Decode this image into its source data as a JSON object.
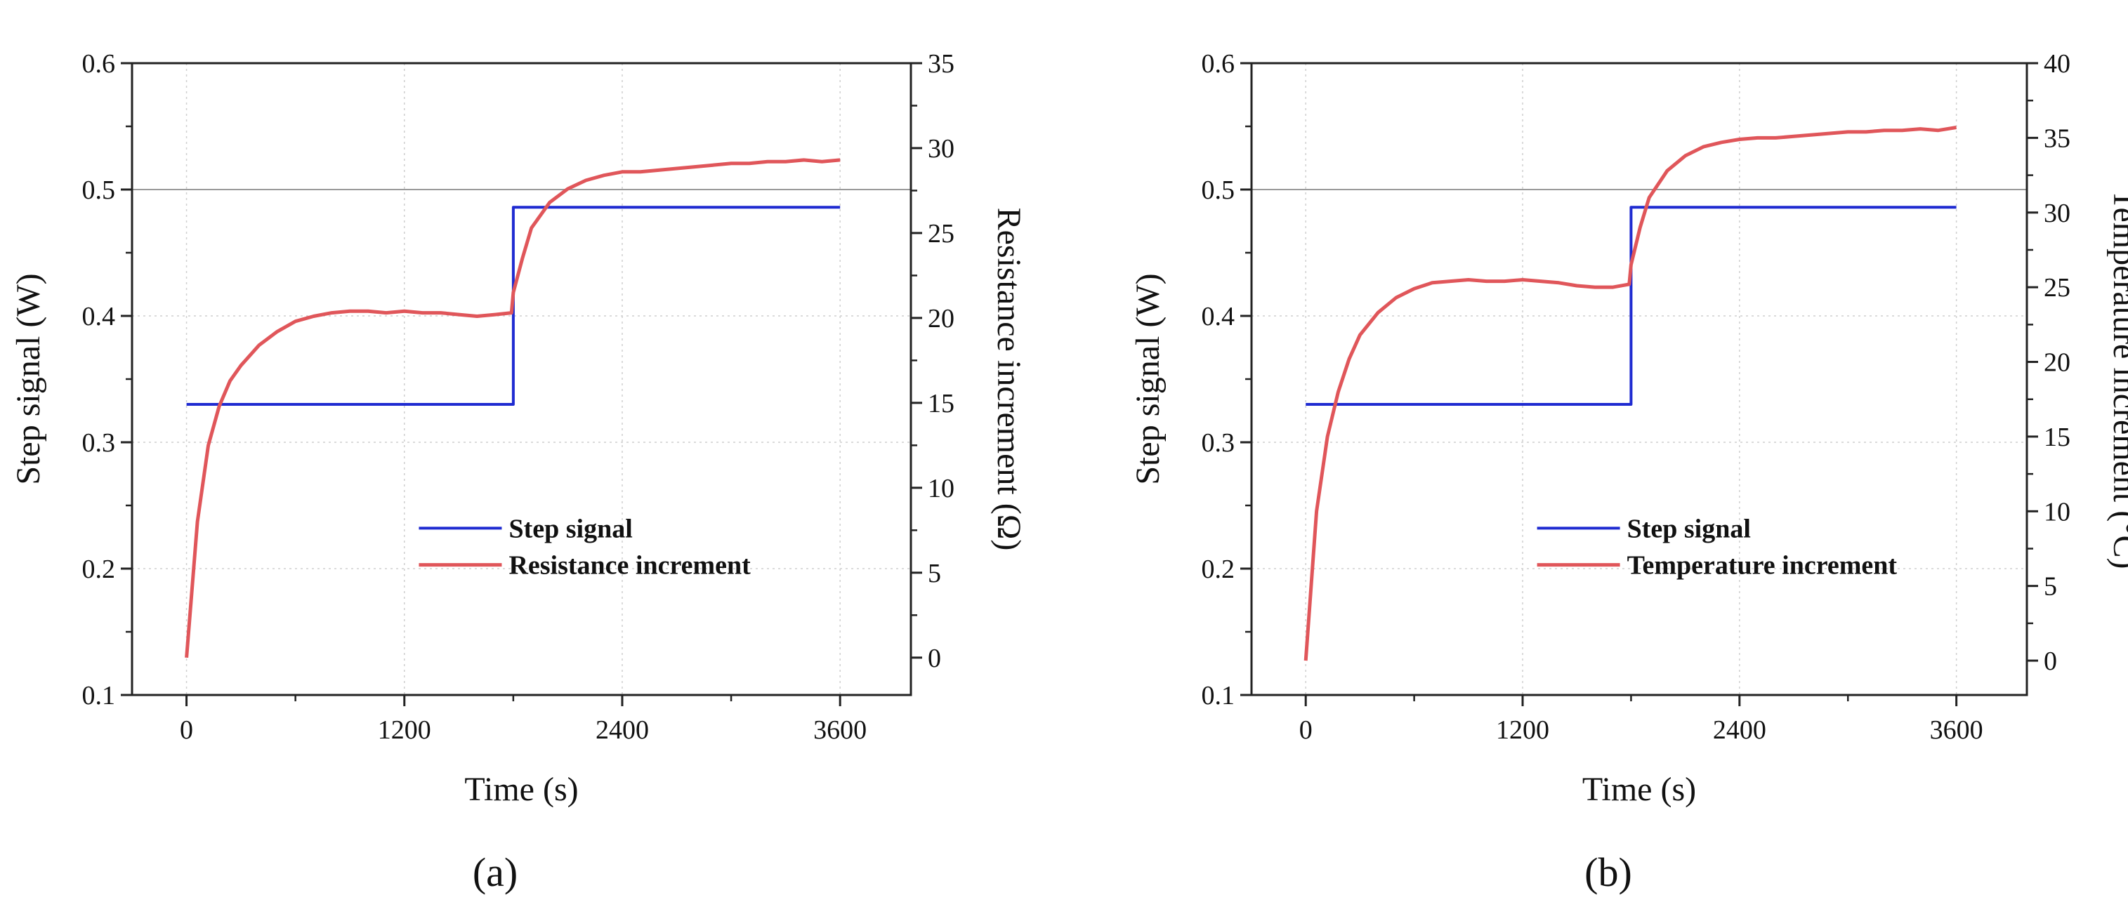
{
  "colors": {
    "step": "#1f2bd1",
    "measured": "#e0565a",
    "axis": "#222222",
    "grid": "#cfcfcf"
  },
  "chart_data": [
    {
      "type": "line",
      "panel_label": "(a)",
      "xlabel": "Time (s)",
      "ylabel_left": "Step signal (W)",
      "ylabel_right": "Resistance increment (Ω)",
      "xlim": [
        -300,
        3990
      ],
      "xticks": [
        0,
        1200,
        2400,
        3600
      ],
      "xtick_labels": [
        "0",
        "1200",
        "2400",
        "3600"
      ],
      "ylim_left": [
        0.1,
        0.6
      ],
      "yticks_left": [
        0.1,
        0.2,
        0.3,
        0.4,
        0.5,
        0.6
      ],
      "ytick_labels_left": [
        "0.1",
        "0.2",
        "0.3",
        "0.4",
        "0.5",
        "0.6"
      ],
      "ylim_right": [
        -2.2,
        35
      ],
      "yticks_right": [
        0,
        5,
        10,
        15,
        20,
        25,
        30,
        35
      ],
      "ytick_labels_right": [
        "0",
        "5",
        "10",
        "15",
        "20",
        "25",
        "30",
        "35"
      ],
      "grid": true,
      "legend_position": "lower-right",
      "legend": [
        "Step signal",
        "Resistance increment"
      ],
      "series": [
        {
          "name": "Step signal",
          "axis": "left",
          "x": [
            0,
            1800,
            1800,
            3600
          ],
          "y": [
            0.33,
            0.33,
            0.486,
            0.486
          ]
        },
        {
          "name": "Resistance increment",
          "axis": "right",
          "x": [
            0,
            60,
            120,
            180,
            240,
            300,
            400,
            500,
            600,
            700,
            800,
            900,
            1000,
            1100,
            1200,
            1300,
            1400,
            1500,
            1600,
            1700,
            1790,
            1800,
            1850,
            1900,
            2000,
            2100,
            2200,
            2300,
            2400,
            2500,
            2600,
            2700,
            2800,
            2900,
            3000,
            3100,
            3200,
            3300,
            3400,
            3500,
            3600
          ],
          "y": [
            0,
            8,
            12.5,
            14.8,
            16.3,
            17.2,
            18.4,
            19.2,
            19.8,
            20.1,
            20.3,
            20.4,
            20.4,
            20.3,
            20.4,
            20.3,
            20.3,
            20.2,
            20.1,
            20.2,
            20.3,
            21.5,
            23.5,
            25.3,
            26.8,
            27.6,
            28.1,
            28.4,
            28.6,
            28.6,
            28.7,
            28.8,
            28.9,
            29.0,
            29.1,
            29.1,
            29.2,
            29.2,
            29.3,
            29.2,
            29.3
          ]
        }
      ]
    },
    {
      "type": "line",
      "panel_label": "(b)",
      "xlabel": "Time (s)",
      "ylabel_left": "Step signal (W)",
      "ylabel_right": "Temperature increment (°C)",
      "xlim": [
        -300,
        3990
      ],
      "xticks": [
        0,
        1200,
        2400,
        3600
      ],
      "xtick_labels": [
        "0",
        "1200",
        "2400",
        "3600"
      ],
      "ylim_left": [
        0.1,
        0.6
      ],
      "yticks_left": [
        0.1,
        0.2,
        0.3,
        0.4,
        0.5,
        0.6
      ],
      "ytick_labels_left": [
        "0.1",
        "0.2",
        "0.3",
        "0.4",
        "0.5",
        "0.6"
      ],
      "ylim_right": [
        -2.3,
        40
      ],
      "yticks_right": [
        0,
        5,
        10,
        15,
        20,
        25,
        30,
        35,
        40
      ],
      "ytick_labels_right": [
        "0",
        "5",
        "10",
        "15",
        "20",
        "25",
        "30",
        "35",
        "40"
      ],
      "grid": true,
      "legend_position": "lower-right",
      "legend": [
        "Step signal",
        "Temperature increment"
      ],
      "series": [
        {
          "name": "Step signal",
          "axis": "left",
          "x": [
            0,
            1800,
            1800,
            3600
          ],
          "y": [
            0.33,
            0.33,
            0.486,
            0.486
          ]
        },
        {
          "name": "Temperature increment",
          "axis": "right",
          "x": [
            0,
            60,
            120,
            180,
            240,
            300,
            400,
            500,
            600,
            700,
            800,
            900,
            1000,
            1100,
            1200,
            1300,
            1400,
            1500,
            1600,
            1700,
            1790,
            1800,
            1850,
            1900,
            2000,
            2100,
            2200,
            2300,
            2400,
            2500,
            2600,
            2700,
            2800,
            2900,
            3000,
            3100,
            3200,
            3300,
            3400,
            3500,
            3600
          ],
          "y": [
            0,
            10,
            15,
            18,
            20.2,
            21.8,
            23.3,
            24.3,
            24.9,
            25.3,
            25.4,
            25.5,
            25.4,
            25.4,
            25.5,
            25.4,
            25.3,
            25.1,
            25.0,
            25.0,
            25.2,
            26.5,
            29.0,
            31.0,
            32.8,
            33.8,
            34.4,
            34.7,
            34.9,
            35.0,
            35.0,
            35.1,
            35.2,
            35.3,
            35.4,
            35.4,
            35.5,
            35.5,
            35.6,
            35.5,
            35.7
          ]
        }
      ]
    }
  ]
}
